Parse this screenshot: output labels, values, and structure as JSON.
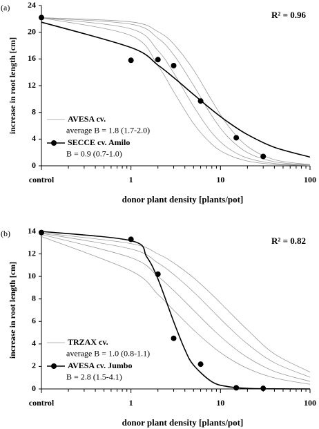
{
  "chart_data": [
    {
      "type": "line",
      "panel_label": "(a)",
      "annotation": "R² = 0.96",
      "xlabel": "donor plant density [plants/pot]",
      "ylabel": "increase in root length [cm]",
      "xscale": "log",
      "xlim": [
        0.1,
        100
      ],
      "xticks": [
        {
          "value": 0.1,
          "label": "control"
        },
        1,
        10,
        100
      ],
      "xminor": [
        0.2,
        0.3,
        0.4,
        0.5,
        0.6,
        0.7,
        0.8,
        0.9,
        2,
        3,
        4,
        5,
        6,
        7,
        8,
        9,
        20,
        30,
        40,
        50,
        60,
        70,
        80,
        90
      ],
      "ylim": [
        0,
        24
      ],
      "yticks": [
        0,
        4,
        8,
        12,
        16,
        20,
        24
      ],
      "legend": "lower left",
      "series": [
        {
          "name": "AVESA cv.",
          "note": "average B = 1.8 (1.7-2.0)",
          "color": "#9a9a9a",
          "x": [
            0.1,
            1,
            2,
            3,
            5,
            8,
            12,
            20,
            40,
            100
          ],
          "values": [
            22.15,
            19.5,
            14.98,
            11.1,
            6.33,
            3.24,
            1.69,
            0.71,
            0.21,
            0.04
          ]
        },
        {
          "color": "#9a9a9a",
          "x": [
            0.1,
            1,
            2,
            3,
            5,
            8,
            12,
            20,
            40,
            100
          ],
          "values": [
            22.17,
            20.51,
            17.25,
            13.91,
            8.9,
            4.95,
            2.7,
            1.16,
            0.35,
            0.07
          ]
        },
        {
          "color": "#9a9a9a",
          "x": [
            0.1,
            1,
            2,
            3,
            5,
            8,
            12,
            20,
            40,
            100
          ],
          "values": [
            22.18,
            21.21,
            19.11,
            16.62,
            12.05,
            7.49,
            4.38,
            1.98,
            0.61,
            0.12
          ]
        },
        {
          "color": "#9a9a9a",
          "x": [
            0.1,
            1,
            2,
            3,
            5,
            8,
            12,
            20,
            40,
            100
          ],
          "values": [
            22.19,
            21.55,
            20.09,
            18.23,
            14.36,
            9.78,
            6.1,
            2.91,
            0.92,
            0.18
          ]
        },
        {
          "name": "SECCE cv. Amilo",
          "note": "B = 0.9 (0.7-1.0)",
          "color": "#000000",
          "legend_marker": true,
          "x": [
            0.1,
            1,
            2,
            3,
            5,
            8,
            12,
            20,
            40,
            100
          ],
          "values": [
            21.51,
            17.71,
            15.08,
            13.21,
            10.68,
            8.39,
            6.59,
            4.67,
            2.77,
            1.31
          ]
        },
        {
          "color": "#000000",
          "markers": true,
          "x": [
            0.1,
            1,
            2,
            3,
            6,
            15,
            30
          ],
          "values": [
            22.2,
            15.8,
            15.9,
            15.0,
            9.7,
            4.2,
            1.4
          ]
        }
      ]
    },
    {
      "type": "line",
      "panel_label": "(b)",
      "annotation": "R² = 0.82",
      "xlabel": "donor plant density [plants/pot]",
      "ylabel": "increase in root length [cm]",
      "xscale": "log",
      "xlim": [
        0.1,
        100
      ],
      "xticks": [
        {
          "value": 0.1,
          "label": "control"
        },
        1,
        10,
        100
      ],
      "xminor": [
        0.2,
        0.3,
        0.4,
        0.5,
        0.6,
        0.7,
        0.8,
        0.9,
        2,
        3,
        4,
        5,
        6,
        7,
        8,
        9,
        20,
        30,
        40,
        50,
        60,
        70,
        80,
        90
      ],
      "ylim": [
        0,
        14
      ],
      "yticks": [
        0,
        2,
        4,
        6,
        8,
        10,
        12,
        14
      ],
      "legend": "lower left",
      "series": [
        {
          "name": "TRZAX cv.",
          "note": "average B = 1.0 (0.8-1.1)",
          "color": "#9a9a9a",
          "x": [
            0.1,
            1,
            2,
            3,
            5,
            8,
            12,
            20,
            40,
            100
          ],
          "values": [
            13.55,
            10.5,
            8.4,
            7.0,
            5.25,
            3.82,
            2.8,
            1.83,
            0.98,
            0.41
          ]
        },
        {
          "color": "#9a9a9a",
          "x": [
            0.1,
            1,
            2,
            3,
            5,
            8,
            12,
            20,
            40,
            100
          ],
          "values": [
            13.73,
            11.67,
            10.0,
            8.75,
            7.0,
            5.38,
            4.12,
            2.8,
            1.56,
            0.67
          ]
        },
        {
          "color": "#9a9a9a",
          "x": [
            0.1,
            1,
            2,
            3,
            5,
            8,
            12,
            20,
            40,
            100
          ],
          "values": [
            13.83,
            12.44,
            11.2,
            10.18,
            8.62,
            7.0,
            5.6,
            4.0,
            2.33,
            1.04
          ]
        },
        {
          "color": "#9a9a9a",
          "x": [
            0.1,
            1,
            2,
            3,
            5,
            8,
            12,
            20,
            40,
            100
          ],
          "values": [
            13.88,
            12.92,
            12.0,
            11.2,
            9.88,
            8.4,
            7.0,
            5.25,
            3.11,
            1.5
          ]
        },
        {
          "name": "AVESA cv. Jumbo",
          "note": "B = 2.8 (1.5-4.1)",
          "color": "#000000",
          "legend_marker": true,
          "x": [
            0.1,
            1,
            1.5,
            2,
            3,
            4,
            5,
            8,
            12,
            20,
            40,
            100
          ],
          "values": [
            14.0,
            13.18,
            11.74,
            9.78,
            5.98,
            3.5,
            2.12,
            0.64,
            0.21,
            0.05,
            0.01,
            0
          ]
        },
        {
          "color": "#000000",
          "markers": true,
          "x": [
            0.1,
            1,
            2,
            3,
            6,
            15,
            30
          ],
          "values": [
            13.9,
            13.3,
            10.2,
            4.5,
            2.2,
            0.1,
            0.05
          ]
        }
      ]
    }
  ]
}
